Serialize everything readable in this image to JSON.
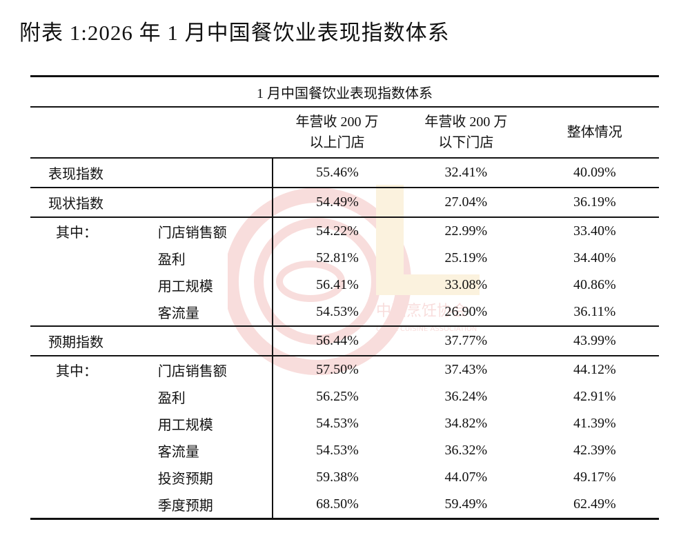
{
  "title": "附表 1:2026 年 1 月中国餐饮业表现指数体系",
  "watermark": {
    "cn": "中国烹饪协会",
    "en": "CHINA CUISINE ASSOCIATION",
    "color": "#d9342b"
  },
  "table": {
    "caption": "1 月中国餐饮业表现指数体系",
    "headers": [
      {
        "line1": "年营收 200 万",
        "line2": "以上门店"
      },
      {
        "line1": "年营收 200 万",
        "line2": "以下门店"
      },
      {
        "line1": "整体情况",
        "line2": ""
      }
    ],
    "rows": [
      {
        "kind": "main",
        "label": "表现指数",
        "values": [
          "55.46%",
          "32.41%",
          "40.09%"
        ]
      },
      {
        "kind": "main",
        "label": "现状指数",
        "values": [
          "54.49%",
          "27.04%",
          "36.19%"
        ]
      },
      {
        "kind": "sub",
        "group": "其中：",
        "label": "门店销售额",
        "values": [
          "54.22%",
          "22.99%",
          "33.40%"
        ]
      },
      {
        "kind": "sub",
        "group": "",
        "label": "盈利",
        "values": [
          "52.81%",
          "25.19%",
          "34.40%"
        ]
      },
      {
        "kind": "sub",
        "group": "",
        "label": "用工规模",
        "values": [
          "56.41%",
          "33.08%",
          "40.86%"
        ]
      },
      {
        "kind": "sub last",
        "group": "",
        "label": "客流量",
        "values": [
          "54.53%",
          "26.90%",
          "36.11%"
        ]
      },
      {
        "kind": "main",
        "label": "预期指数",
        "values": [
          "56.44%",
          "37.77%",
          "43.99%"
        ]
      },
      {
        "kind": "sub",
        "group": "其中：",
        "label": "门店销售额",
        "values": [
          "57.50%",
          "37.43%",
          "44.12%"
        ]
      },
      {
        "kind": "sub",
        "group": "",
        "label": "盈利",
        "values": [
          "56.25%",
          "36.24%",
          "42.91%"
        ]
      },
      {
        "kind": "sub",
        "group": "",
        "label": "用工规模",
        "values": [
          "54.53%",
          "34.82%",
          "41.39%"
        ]
      },
      {
        "kind": "sub",
        "group": "",
        "label": "客流量",
        "values": [
          "54.53%",
          "36.32%",
          "42.39%"
        ]
      },
      {
        "kind": "sub",
        "group": "",
        "label": "投资预期",
        "values": [
          "59.38%",
          "44.07%",
          "49.17%"
        ]
      },
      {
        "kind": "sub final",
        "group": "",
        "label": "季度预期",
        "values": [
          "68.50%",
          "59.49%",
          "62.49%"
        ]
      }
    ]
  }
}
